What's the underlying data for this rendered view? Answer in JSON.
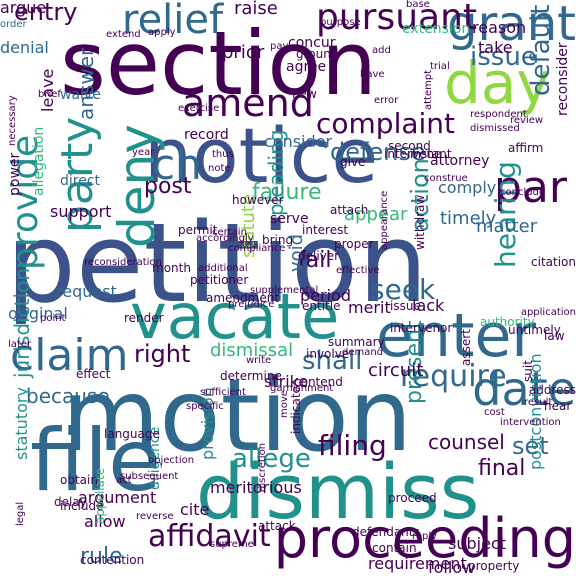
{
  "palette": {
    "dark_purple": "#440154",
    "indigo": "#3b528b",
    "blue": "#31688e",
    "teal": "#21918c",
    "green": "#35b779",
    "lime": "#90d743",
    "yellow": "#fde725"
  },
  "words": [
    {
      "text": "petition",
      "color": "#3b528b"
    },
    {
      "text": "motion",
      "color": "#31688e"
    },
    {
      "text": "section",
      "color": "#440154"
    },
    {
      "text": "notice",
      "color": "#3b528b"
    },
    {
      "text": "file",
      "color": "#31688e"
    },
    {
      "text": "dismiss",
      "color": "#21918c"
    },
    {
      "text": "vacate",
      "color": "#21918c"
    },
    {
      "text": "enter",
      "color": "#31688e"
    },
    {
      "text": "proceeding",
      "color": "#440154"
    },
    {
      "text": "grant",
      "color": "#31688e"
    },
    {
      "text": "day",
      "color": "#90d743"
    },
    {
      "text": "deny",
      "color": "#21918c"
    },
    {
      "text": "claim",
      "color": "#31688e"
    },
    {
      "text": "amend",
      "color": "#440154"
    },
    {
      "text": "date",
      "color": "#31688e"
    },
    {
      "text": "party",
      "color": "#21918c"
    },
    {
      "text": "ch",
      "color": "#31688e"
    },
    {
      "text": "par",
      "color": "#440154"
    },
    {
      "text": "provide",
      "color": "#21918c"
    },
    {
      "text": "relief",
      "color": "#31688e"
    },
    {
      "text": "pursuant",
      "color": "#440154"
    },
    {
      "text": "issue",
      "color": "#31688e"
    },
    {
      "text": "require",
      "color": "#31688e"
    },
    {
      "text": "affidavit",
      "color": "#440154"
    },
    {
      "text": "jurisdiction",
      "color": "#21918c"
    },
    {
      "text": "allege",
      "color": "#21918c"
    },
    {
      "text": "filing",
      "color": "#440154"
    },
    {
      "text": "hearing",
      "color": "#21918c"
    },
    {
      "text": "complaint",
      "color": "#440154"
    },
    {
      "text": "defense",
      "color": "#31688e"
    },
    {
      "text": "default",
      "color": "#31688e"
    },
    {
      "text": "shall",
      "color": "#31688e"
    },
    {
      "text": "entry",
      "color": "#440154"
    },
    {
      "text": "set",
      "color": "#31688e"
    },
    {
      "text": "final",
      "color": "#440154"
    },
    {
      "text": "present",
      "color": "#21918c"
    },
    {
      "text": "right",
      "color": "#440154"
    },
    {
      "text": "post",
      "color": "#440154"
    },
    {
      "text": "failure",
      "color": "#35b779"
    },
    {
      "text": "action",
      "color": "#21918c"
    },
    {
      "text": "seek",
      "color": "#31688e"
    },
    {
      "text": "fail",
      "color": "#440154"
    },
    {
      "text": "answer",
      "color": "#31688e"
    },
    {
      "text": "dismissal",
      "color": "#35b779"
    },
    {
      "text": "because",
      "color": "#31688e"
    },
    {
      "text": "matter",
      "color": "#31688e"
    },
    {
      "text": "rule",
      "color": "#31688e"
    },
    {
      "text": "raise",
      "color": "#440154"
    },
    {
      "text": "counsel",
      "color": "#440154"
    },
    {
      "text": "circuit",
      "color": "#440154"
    },
    {
      "text": "pleading",
      "color": "#21918c"
    },
    {
      "text": "statute",
      "color": "#90d743"
    },
    {
      "text": "timely",
      "color": "#31688e"
    },
    {
      "text": "void",
      "color": "#31688e"
    },
    {
      "text": "appear",
      "color": "#35b779"
    },
    {
      "text": "argue",
      "color": "#440154"
    },
    {
      "text": "order",
      "color": "#31688e"
    },
    {
      "text": "denial",
      "color": "#31688e"
    },
    {
      "text": "prior",
      "color": "#440154"
    },
    {
      "text": "consider",
      "color": "#31688e"
    },
    {
      "text": "request",
      "color": "#31688e"
    },
    {
      "text": "original",
      "color": "#31688e"
    },
    {
      "text": "support",
      "color": "#440154"
    },
    {
      "text": "period",
      "color": "#440154"
    },
    {
      "text": "merit",
      "color": "#440154"
    },
    {
      "text": "comply",
      "color": "#31688e"
    },
    {
      "text": "strike",
      "color": "#440154"
    },
    {
      "text": "allow",
      "color": "#440154"
    },
    {
      "text": "provision",
      "color": "#21918c"
    },
    {
      "text": "argument",
      "color": "#440154"
    },
    {
      "text": "statutory",
      "color": "#21918c"
    },
    {
      "text": "cite",
      "color": "#440154"
    },
    {
      "text": "follow",
      "color": "#440154"
    },
    {
      "text": "requirement",
      "color": "#440154"
    },
    {
      "text": "diligence",
      "color": "#21918c"
    },
    {
      "text": "postconviction",
      "color": "#21918c"
    },
    {
      "text": "subject",
      "color": "#440154"
    },
    {
      "text": "meritorious",
      "color": "#440154"
    },
    {
      "text": "lack",
      "color": "#440154"
    },
    {
      "text": "extension",
      "color": "#35b779"
    },
    {
      "text": "reason",
      "color": "#440154"
    },
    {
      "text": "take",
      "color": "#440154"
    },
    {
      "text": "purpose",
      "color": "#440154"
    },
    {
      "text": "concur",
      "color": "#440154"
    },
    {
      "text": "agree",
      "color": "#440154"
    },
    {
      "text": "ground",
      "color": "#440154"
    },
    {
      "text": "waive",
      "color": "#31688e"
    },
    {
      "text": "leave",
      "color": "#440154"
    },
    {
      "text": "record",
      "color": "#440154"
    },
    {
      "text": "direct",
      "color": "#31688e"
    },
    {
      "text": "serve",
      "color": "#440154"
    },
    {
      "text": "interest",
      "color": "#440154"
    },
    {
      "text": "bring",
      "color": "#440154"
    },
    {
      "text": "deliver",
      "color": "#440154"
    },
    {
      "text": "render",
      "color": "#440154"
    },
    {
      "text": "amendment",
      "color": "#440154"
    },
    {
      "text": "summary",
      "color": "#440154"
    },
    {
      "text": "contend",
      "color": "#440154"
    },
    {
      "text": "determine",
      "color": "#440154"
    },
    {
      "text": "language",
      "color": "#440154"
    },
    {
      "text": "obtain",
      "color": "#440154"
    },
    {
      "text": "include",
      "color": "#440154"
    },
    {
      "text": "attack",
      "color": "#440154"
    },
    {
      "text": "appellate",
      "color": "#35b779"
    },
    {
      "text": "delay",
      "color": "#440154"
    },
    {
      "text": "contention",
      "color": "#440154"
    },
    {
      "text": "proceed",
      "color": "#440154"
    },
    {
      "text": "reconsider",
      "color": "#440154"
    },
    {
      "text": "attorney",
      "color": "#440154"
    },
    {
      "text": "give",
      "color": "#440154"
    },
    {
      "text": "second",
      "color": "#440154"
    },
    {
      "text": "intervene",
      "color": "#440154"
    },
    {
      "text": "permit",
      "color": "#440154"
    },
    {
      "text": "petitioner",
      "color": "#440154"
    },
    {
      "text": "month",
      "color": "#440154"
    },
    {
      "text": "power",
      "color": "#440154"
    },
    {
      "text": "allegation",
      "color": "#35b779"
    },
    {
      "text": "authority",
      "color": "#35b779"
    },
    {
      "text": "address",
      "color": "#440154"
    },
    {
      "text": "law",
      "color": "#440154"
    },
    {
      "text": "suit",
      "color": "#440154"
    },
    {
      "text": "property",
      "color": "#440154"
    },
    {
      "text": "new",
      "color": "#440154"
    },
    {
      "text": "proper",
      "color": "#440154"
    },
    {
      "text": "issue",
      "color": "#440154"
    },
    {
      "text": "intervenor",
      "color": "#440154"
    },
    {
      "text": "entitle",
      "color": "#440154"
    },
    {
      "text": "however",
      "color": "#440154"
    },
    {
      "text": "instant",
      "color": "#440154"
    },
    {
      "text": "affirm",
      "color": "#440154"
    },
    {
      "text": "attach",
      "color": "#440154"
    },
    {
      "text": "involve",
      "color": "#440154"
    },
    {
      "text": "effect",
      "color": "#440154"
    },
    {
      "text": "assert",
      "color": "#440154"
    },
    {
      "text": "contain",
      "color": "#440154"
    },
    {
      "text": "defendants",
      "color": "#440154"
    },
    {
      "text": "indicate",
      "color": "#440154"
    },
    {
      "text": "hear",
      "color": "#440154"
    },
    {
      "text": "citation",
      "color": "#440154"
    },
    {
      "text": "withdraw",
      "color": "#440154"
    },
    {
      "text": "untimely",
      "color": "#440154"
    },
    {
      "text": "exercise",
      "color": "#440154"
    },
    {
      "text": "year",
      "color": "#440154"
    },
    {
      "text": "note",
      "color": "#440154"
    },
    {
      "text": "thus",
      "color": "#440154"
    },
    {
      "text": "review",
      "color": "#440154"
    },
    {
      "text": "extend",
      "color": "#440154"
    },
    {
      "text": "apply",
      "color": "#440154"
    },
    {
      "text": "pay",
      "color": "#440154"
    },
    {
      "text": "base",
      "color": "#440154"
    },
    {
      "text": "add",
      "color": "#440154"
    },
    {
      "text": "have",
      "color": "#440154"
    },
    {
      "text": "certain",
      "color": "#440154"
    },
    {
      "text": "move",
      "color": "#440154"
    },
    {
      "text": "subsequent",
      "color": "#440154"
    },
    {
      "text": "reverse",
      "color": "#440154"
    },
    {
      "text": "discretion",
      "color": "#440154"
    },
    {
      "text": "legal",
      "color": "#440154"
    },
    {
      "text": "supplemental",
      "color": "#440154"
    },
    {
      "text": "additional",
      "color": "#440154"
    },
    {
      "text": "demand",
      "color": "#440154"
    },
    {
      "text": "garnishment",
      "color": "#440154"
    },
    {
      "text": "conclude",
      "color": "#440154"
    },
    {
      "text": "point",
      "color": "#440154"
    },
    {
      "text": "write",
      "color": "#440154"
    },
    {
      "text": "brief",
      "color": "#440154"
    },
    {
      "text": "later",
      "color": "#440154"
    },
    {
      "text": "act",
      "color": "#440154"
    },
    {
      "text": "compliance",
      "color": "#440154"
    },
    {
      "text": "result",
      "color": "#440154"
    },
    {
      "text": "necessary",
      "color": "#440154"
    },
    {
      "text": "attempt",
      "color": "#440154"
    },
    {
      "text": "construe",
      "color": "#440154"
    },
    {
      "text": "cost",
      "color": "#440154"
    },
    {
      "text": "appearance",
      "color": "#440154"
    },
    {
      "text": "accordingly",
      "color": "#440154"
    },
    {
      "text": "intervention",
      "color": "#440154"
    },
    {
      "text": "prejudice",
      "color": "#440154"
    },
    {
      "text": "application",
      "color": "#440154"
    },
    {
      "text": "reconsideration",
      "color": "#440154"
    },
    {
      "text": "respondent",
      "color": "#440154"
    },
    {
      "text": "dismissed",
      "color": "#440154"
    },
    {
      "text": "sufficient",
      "color": "#440154"
    },
    {
      "text": "specific",
      "color": "#440154"
    },
    {
      "text": "objection",
      "color": "#440154"
    },
    {
      "text": "supreme",
      "color": "#440154"
    },
    {
      "text": "reply",
      "color": "#440154"
    },
    {
      "text": "trial",
      "color": "#440154"
    },
    {
      "text": "error",
      "color": "#440154"
    },
    {
      "text": "effective",
      "color": "#440154"
    },
    {
      "text": "amended",
      "color": "#440154"
    },
    {
      "text": "appellant",
      "color": "#440154"
    },
    {
      "text": "judgment",
      "color": "#440154"
    },
    {
      "text": "limit",
      "color": "#440154"
    },
    {
      "text": "pursue",
      "color": "#440154"
    },
    {
      "text": "file",
      "color": "#440154"
    },
    {
      "text": "hold",
      "color": "#440154"
    }
  ]
}
